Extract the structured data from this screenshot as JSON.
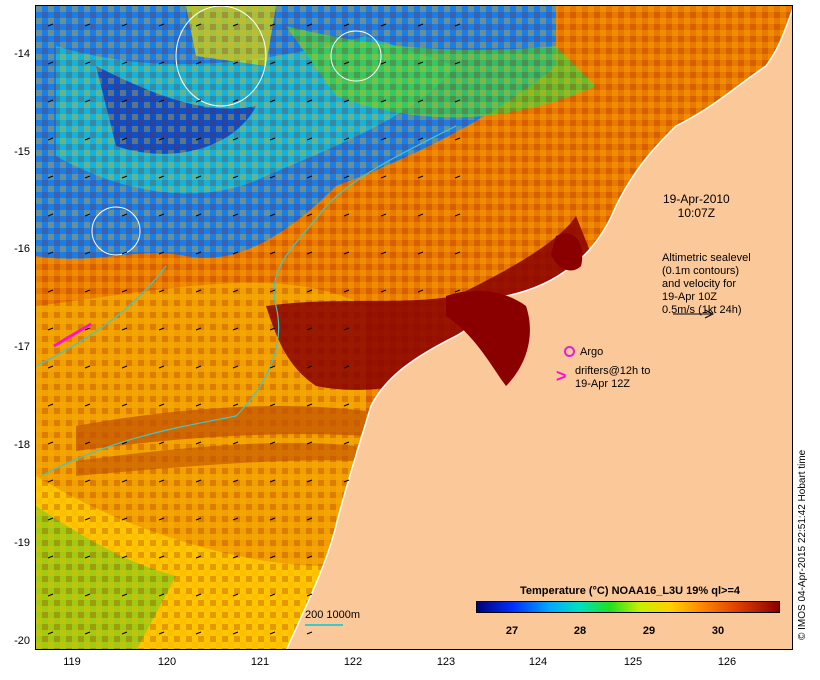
{
  "map": {
    "x_ticks": [
      "119",
      "120",
      "121",
      "122",
      "123",
      "124",
      "125",
      "126"
    ],
    "y_ticks": [
      "-14",
      "-15",
      "-16",
      "-17",
      "-18",
      "-19",
      "-20"
    ],
    "colors": {
      "land": "#fbc89a",
      "coastline": "#ffffff",
      "contour_200_1000": "#3fc8c8",
      "drifter": "#ff10d0",
      "argo": "#e020e0"
    }
  },
  "annotations": {
    "date_line1": "19-Apr-2010",
    "date_line2": "10:07Z",
    "altimetry": [
      "Altimetric sealevel",
      "(0.1m contours)",
      "and velocity for",
      "19-Apr 10Z",
      "0.5m/s (1kt 24h)"
    ],
    "argo": "Argo",
    "drifters": [
      "drifters@12h to",
      "19-Apr 12Z"
    ],
    "contour_key": "200  1000m"
  },
  "colorbar": {
    "title": "Temperature (°C) NOAA16_L3U 19% ql>=4",
    "ticks": [
      "27",
      "28",
      "29",
      "30"
    ]
  },
  "credit": "© IMOS 04-Apr-2015 22:51:42 Hobart time"
}
